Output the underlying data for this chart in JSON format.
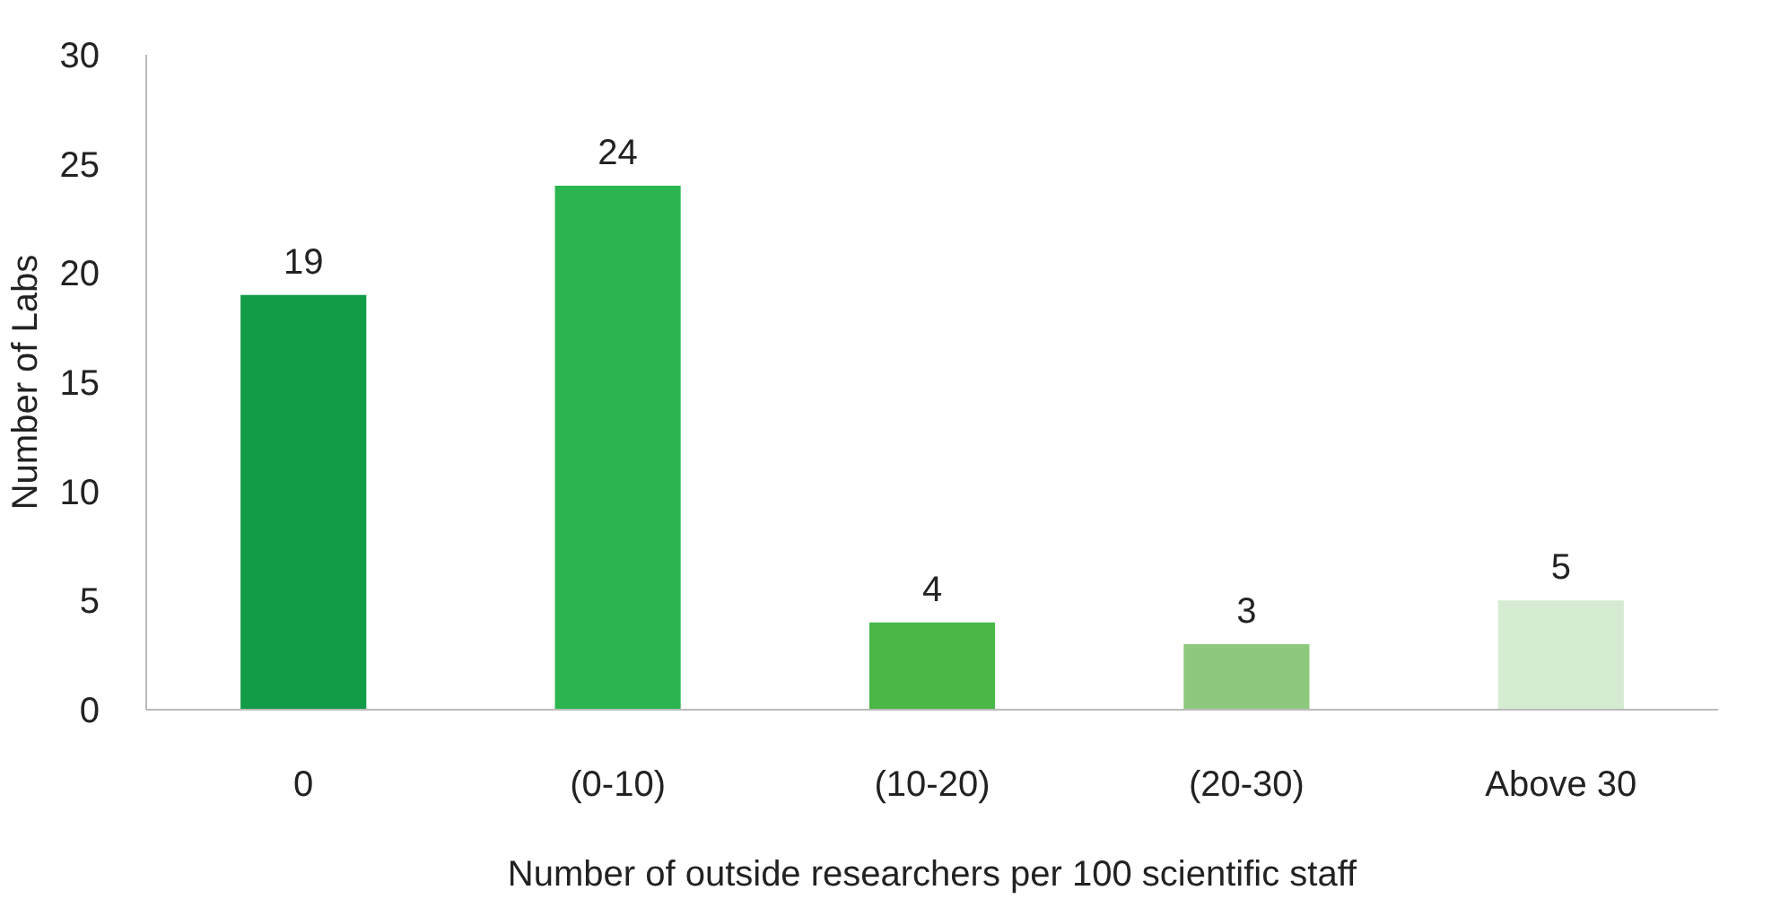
{
  "chart_data": {
    "type": "bar",
    "xlabel": "Number of outside researchers per 100 scientific staff",
    "ylabel": "Number of Labs",
    "categories": [
      "0",
      "(0-10)",
      "(10-20)",
      "(20-30)",
      "Above 30"
    ],
    "values": [
      19,
      24,
      4,
      3,
      5
    ],
    "colors": [
      "#129c48",
      "#2bb54e",
      "#4ab847",
      "#8cc97c",
      "#d5ebd2"
    ],
    "ylim": [
      0,
      30
    ],
    "yticks": [
      0,
      5,
      10,
      15,
      20,
      25,
      30
    ],
    "grid": false,
    "data_labels": true
  }
}
